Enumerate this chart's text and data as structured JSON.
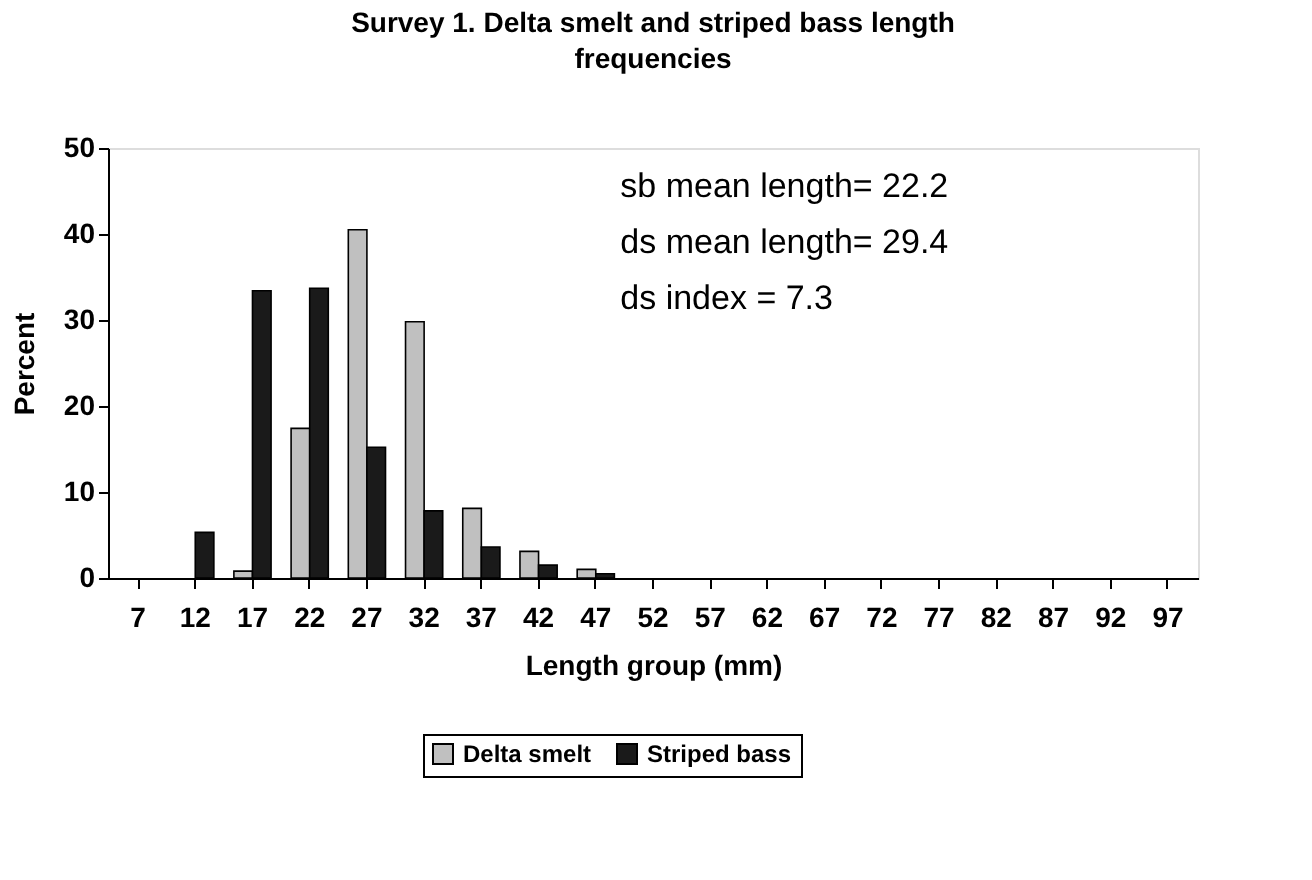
{
  "chart_data": {
    "type": "bar",
    "title": "Survey 1.  Delta smelt and striped bass length frequencies",
    "xlabel": "Length group (mm)",
    "ylabel": "Percent",
    "categories": [
      "7",
      "12",
      "17",
      "22",
      "27",
      "32",
      "37",
      "42",
      "47",
      "52",
      "57",
      "62",
      "67",
      "72",
      "77",
      "82",
      "87",
      "92",
      "97"
    ],
    "series": [
      {
        "name": "Delta smelt",
        "color": "#c0c0c0",
        "values": [
          0,
          0,
          0.8,
          17.4,
          40.5,
          29.8,
          8.1,
          3.1,
          1.0,
          0,
          0,
          0,
          0,
          0,
          0,
          0,
          0,
          0,
          0
        ]
      },
      {
        "name": "Striped bass",
        "color": "#1a1a1a",
        "values": [
          0,
          5.3,
          33.4,
          33.7,
          15.2,
          7.8,
          3.6,
          1.5,
          0.5,
          0,
          0,
          0,
          0,
          0,
          0,
          0,
          0,
          0,
          0
        ]
      }
    ],
    "ylim": [
      0,
      50
    ],
    "yticks": [
      0,
      10,
      20,
      30,
      40,
      50
    ],
    "grid": false,
    "legend": "bottom",
    "annotations": [
      "sb mean length= 22.2",
      "ds mean length= 29.4",
      "ds index = 7.3"
    ]
  }
}
